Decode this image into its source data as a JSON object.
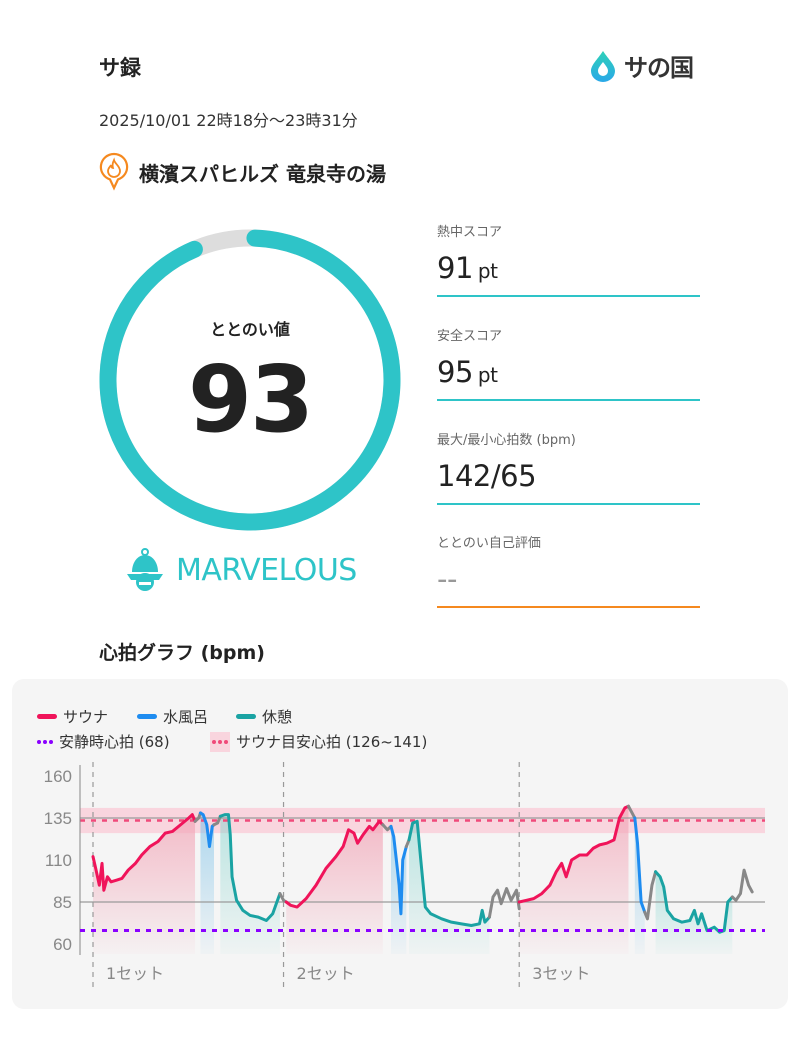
{
  "header": {
    "title": "サ録",
    "logo_text": "サの国",
    "datetime": "2025/10/01 22時18分〜23時31分"
  },
  "facility": {
    "name": "横濱スパヒルズ 竜泉寺の湯",
    "icon": "flame-pin-icon"
  },
  "totonoi": {
    "label": "ととのい値",
    "value": "93",
    "progress_percent": 93,
    "rank": "MARVELOUS",
    "rank_icon": "sauna-hat-icon"
  },
  "stats": [
    {
      "label": "熱中スコア",
      "value": "91",
      "unit": "pt"
    },
    {
      "label": "安全スコア",
      "value": "95",
      "unit": "pt"
    },
    {
      "label": "最大/最小心拍数 (bpm)",
      "value": "142/65",
      "unit": ""
    },
    {
      "label": "ととのい自己評価",
      "value": "--",
      "unit": ""
    }
  ],
  "colors": {
    "accent": "#2ec4c8",
    "orange": "#f5891f",
    "sauna": "#f0145a",
    "cold": "#1e8cf0",
    "rest": "#1aa3a3",
    "transition": "#888888",
    "resting": "#8a00ff",
    "target": "#f04a7a",
    "target_band": "#f9d5de"
  },
  "graph": {
    "title": "心拍グラフ (bpm)",
    "legend": {
      "sauna": "サウナ",
      "cold": "水風呂",
      "rest": "休憩",
      "resting_hr": "安静時心拍 (68)",
      "target_hr": "サウナ目安心拍 (126~141)"
    }
  },
  "chart_data": {
    "type": "line",
    "ylabel": "bpm",
    "ylim": [
      60,
      160
    ],
    "yticks": [
      160,
      135,
      110,
      85,
      60
    ],
    "xlim_minutes": [
      0,
      73
    ],
    "resting_hr": 68,
    "target_band": [
      126,
      141
    ],
    "sets": [
      {
        "label": "1セット",
        "start": 0
      },
      {
        "label": "2セット",
        "start": 21.1
      },
      {
        "label": "3セット",
        "start": 47.2
      }
    ],
    "segments": [
      {
        "type": "sauna",
        "points": [
          [
            0,
            112
          ],
          [
            0.3,
            105
          ],
          [
            0.7,
            95
          ],
          [
            1,
            108
          ],
          [
            1.2,
            92
          ],
          [
            1.6,
            100
          ],
          [
            2,
            97
          ],
          [
            2.6,
            98
          ],
          [
            3.2,
            99
          ],
          [
            3.9,
            104
          ],
          [
            4.7,
            108
          ],
          [
            5.4,
            113
          ],
          [
            6.3,
            118
          ],
          [
            7.2,
            121
          ],
          [
            8,
            126
          ],
          [
            8.8,
            127
          ],
          [
            9.7,
            131
          ],
          [
            10.6,
            135
          ],
          [
            11,
            137
          ],
          [
            11.3,
            133
          ]
        ]
      },
      {
        "type": "transition",
        "points": [
          [
            11.3,
            133
          ],
          [
            11.7,
            135
          ],
          [
            11.9,
            138
          ]
        ]
      },
      {
        "type": "cold",
        "points": [
          [
            11.9,
            138
          ],
          [
            12.2,
            137
          ],
          [
            12.6,
            131
          ],
          [
            12.9,
            118
          ],
          [
            13.2,
            130
          ],
          [
            13.4,
            131
          ]
        ]
      },
      {
        "type": "transition",
        "points": [
          [
            13.4,
            131
          ],
          [
            13.8,
            132
          ],
          [
            14.1,
            136
          ]
        ]
      },
      {
        "type": "rest",
        "points": [
          [
            14.1,
            136
          ],
          [
            14.6,
            137
          ],
          [
            15,
            137
          ],
          [
            15.2,
            125
          ],
          [
            15.4,
            100
          ],
          [
            15.9,
            86
          ],
          [
            16.6,
            80
          ],
          [
            17.4,
            77
          ],
          [
            18.3,
            76
          ],
          [
            19.2,
            74
          ],
          [
            19.9,
            78
          ],
          [
            20.3,
            84
          ],
          [
            20.7,
            90
          ]
        ]
      },
      {
        "type": "transition",
        "points": [
          [
            20.7,
            90
          ],
          [
            21.1,
            86
          ],
          [
            21.4,
            85
          ]
        ]
      },
      {
        "type": "sauna",
        "points": [
          [
            21.4,
            85
          ],
          [
            21.9,
            83
          ],
          [
            22.6,
            82
          ],
          [
            23.6,
            87
          ],
          [
            24.7,
            95
          ],
          [
            25.8,
            105
          ],
          [
            26.9,
            112
          ],
          [
            27.7,
            118
          ],
          [
            28.3,
            128
          ],
          [
            28.9,
            126
          ],
          [
            29.3,
            120
          ],
          [
            29.9,
            125
          ],
          [
            30.6,
            130
          ],
          [
            31,
            128
          ],
          [
            31.7,
            133
          ],
          [
            32.1,
            131
          ]
        ]
      },
      {
        "type": "transition",
        "points": [
          [
            32.1,
            131
          ],
          [
            32.6,
            128
          ],
          [
            33,
            130
          ]
        ]
      },
      {
        "type": "cold",
        "points": [
          [
            33,
            130
          ],
          [
            33.3,
            124
          ],
          [
            33.7,
            105
          ],
          [
            33.9,
            95
          ],
          [
            34.1,
            78
          ],
          [
            34.3,
            110
          ],
          [
            34.7,
            118
          ]
        ]
      },
      {
        "type": "transition",
        "points": [
          [
            34.7,
            118
          ],
          [
            35,
            122
          ]
        ]
      },
      {
        "type": "rest",
        "points": [
          [
            35,
            122
          ],
          [
            35.4,
            132
          ],
          [
            35.9,
            133
          ],
          [
            36.3,
            110
          ],
          [
            36.8,
            82
          ],
          [
            37.4,
            78
          ],
          [
            38.6,
            75
          ],
          [
            39.7,
            73
          ],
          [
            40.8,
            72
          ],
          [
            41.9,
            71
          ],
          [
            42.8,
            72
          ],
          [
            43.1,
            80
          ],
          [
            43.4,
            73
          ],
          [
            43.9,
            76
          ]
        ]
      },
      {
        "type": "transition",
        "points": [
          [
            43.9,
            76
          ],
          [
            44.3,
            88
          ],
          [
            44.8,
            92
          ],
          [
            45.2,
            84
          ],
          [
            45.8,
            93
          ],
          [
            46.3,
            86
          ],
          [
            46.9,
            92
          ],
          [
            47.2,
            81
          ]
        ]
      },
      {
        "type": "sauna",
        "points": [
          [
            47.2,
            85
          ],
          [
            48,
            86
          ],
          [
            48.8,
            87
          ],
          [
            49.7,
            90
          ],
          [
            50.6,
            95
          ],
          [
            51.3,
            103
          ],
          [
            51.9,
            108
          ],
          [
            52.4,
            100
          ],
          [
            53,
            110
          ],
          [
            53.9,
            113
          ],
          [
            54.7,
            113
          ],
          [
            55.4,
            117
          ],
          [
            56.1,
            119
          ],
          [
            56.9,
            120
          ],
          [
            57.7,
            122
          ],
          [
            58.3,
            135
          ],
          [
            58.9,
            141
          ],
          [
            59.3,
            142
          ]
        ]
      },
      {
        "type": "transition",
        "points": [
          [
            59.3,
            142
          ],
          [
            59.7,
            138
          ],
          [
            60,
            135
          ]
        ]
      },
      {
        "type": "cold",
        "points": [
          [
            60,
            135
          ],
          [
            60.3,
            120
          ],
          [
            60.7,
            85
          ],
          [
            61.1,
            79
          ]
        ]
      },
      {
        "type": "transition",
        "points": [
          [
            61.1,
            79
          ],
          [
            61.4,
            75
          ],
          [
            61.9,
            95
          ],
          [
            62.3,
            103
          ]
        ]
      },
      {
        "type": "rest",
        "points": [
          [
            62.3,
            103
          ],
          [
            62.8,
            100
          ],
          [
            63.2,
            94
          ],
          [
            63.6,
            80
          ],
          [
            64.3,
            75
          ],
          [
            65.2,
            73
          ],
          [
            66.1,
            74
          ],
          [
            66.6,
            80
          ],
          [
            67,
            72
          ],
          [
            67.4,
            78
          ],
          [
            68,
            68
          ],
          [
            68.8,
            70
          ],
          [
            69.4,
            67
          ],
          [
            69.9,
            68
          ],
          [
            70.3,
            85
          ],
          [
            70.8,
            88
          ]
        ]
      },
      {
        "type": "transition",
        "points": [
          [
            70.8,
            88
          ],
          [
            71.2,
            86
          ],
          [
            71.7,
            90
          ],
          [
            72.1,
            104
          ],
          [
            72.6,
            95
          ],
          [
            73,
            91
          ]
        ]
      }
    ]
  }
}
